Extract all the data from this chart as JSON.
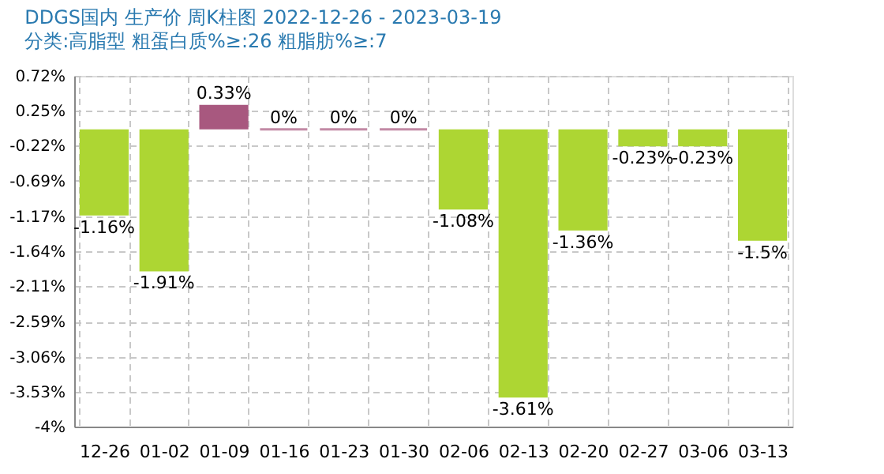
{
  "chart_data": {
    "type": "bar",
    "title": "DDGS国内 生产价 周K柱图 2022-12-26 - 2023-03-19",
    "subtitle": "分类:高脂型 粗蛋白质%≥:26 粗脂肪%≥:7",
    "categories": [
      "12-26",
      "01-02",
      "01-09",
      "01-16",
      "01-23",
      "01-30",
      "02-06",
      "02-13",
      "02-20",
      "02-27",
      "03-06",
      "03-13"
    ],
    "values": [
      -1.16,
      -1.91,
      0.33,
      0,
      0,
      0,
      -1.08,
      -3.61,
      -1.36,
      -0.23,
      -0.23,
      -1.5
    ],
    "colors": [
      "#add633",
      "#add633",
      "#a8587f",
      "#a8587f",
      "#a8587f",
      "#a8587f",
      "#add633",
      "#add633",
      "#add633",
      "#add633",
      "#add633",
      "#add633"
    ],
    "value_labels": [
      "-1.16%",
      "-1.91%",
      "0.33%",
      "0%",
      "0%",
      "0%",
      "-1.08%",
      "-3.61%",
      "-1.36%",
      "-0.23%",
      "-0.23%",
      "-1.5%"
    ],
    "ylim": [
      -4,
      0.72
    ],
    "yticks": [
      {
        "value": 0.72,
        "label": "0.72%"
      },
      {
        "value": 0.25,
        "label": "0.25%"
      },
      {
        "value": -0.22,
        "label": "-0.22%"
      },
      {
        "value": -0.69,
        "label": "-0.69%"
      },
      {
        "value": -1.17,
        "label": "-1.17%"
      },
      {
        "value": -1.64,
        "label": "-1.64%"
      },
      {
        "value": -2.11,
        "label": "-2.11%"
      },
      {
        "value": -2.59,
        "label": "-2.59%"
      },
      {
        "value": -3.06,
        "label": "-3.06%"
      },
      {
        "value": -3.53,
        "label": "-3.53%"
      },
      {
        "value": -4,
        "label": "-4%"
      }
    ],
    "grid": true
  }
}
